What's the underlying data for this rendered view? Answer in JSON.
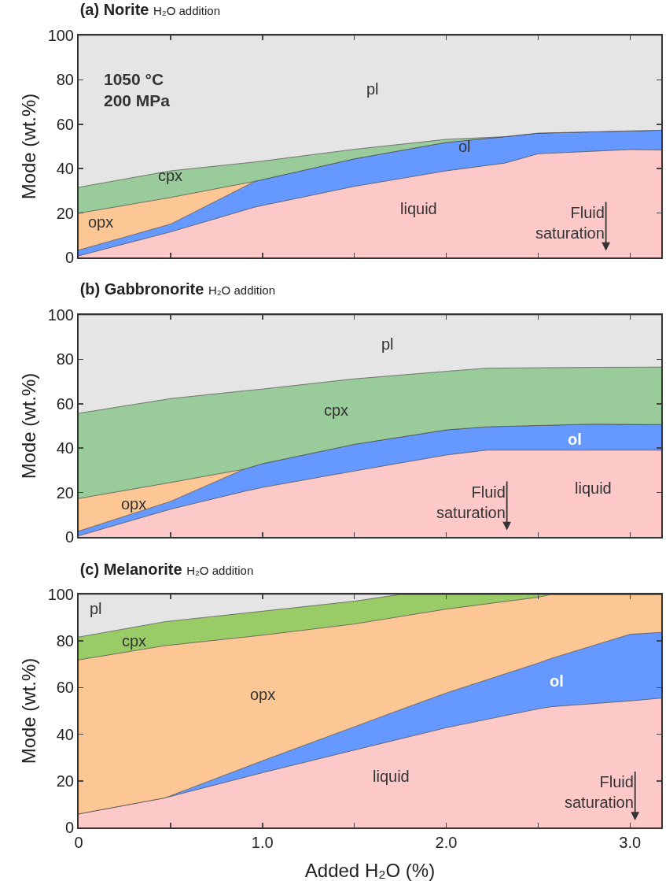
{
  "chart_data": [
    {
      "type": "area",
      "stacked": true,
      "title": "(a) Norite",
      "subtitle": "H₂O addition",
      "ylabel": "Mode (wt.%)",
      "x": [
        0,
        0.5,
        0.96,
        1.5,
        2.0,
        2.32,
        2.5,
        3.0,
        3.17
      ],
      "series": [
        {
          "name": "liquid",
          "color": "#fcc8c8",
          "values": [
            0.7,
            11.5,
            22.7,
            32,
            39,
            42.5,
            46.7,
            48.6,
            48.4
          ]
        },
        {
          "name": "ol",
          "color": "#6699ff",
          "values": [
            2.6,
            3.5,
            11.6,
            12.4,
            12.8,
            11.9,
            9.3,
            8.4,
            8.9
          ]
        },
        {
          "name": "opx",
          "color": "#fdc795",
          "values": [
            16.6,
            12,
            0,
            0,
            0,
            0,
            0,
            0,
            0
          ]
        },
        {
          "name": "cpx",
          "color": "#9acb9a",
          "values": [
            11.7,
            12,
            8.7,
            4.3,
            1.4,
            0,
            0,
            0,
            0
          ]
        },
        {
          "name": "pl",
          "color": "#e5e5e5",
          "values": [
            68.4,
            61,
            57,
            51.3,
            46.8,
            45.6,
            44,
            43,
            42.7
          ]
        }
      ],
      "xlim": [
        0,
        3.17
      ],
      "ylim": [
        0,
        100
      ],
      "xticks": [
        {
          "value": 0,
          "label": null
        },
        {
          "value": 0.5,
          "label": null
        },
        {
          "value": 1,
          "label": null
        },
        {
          "value": 1.5,
          "label": null
        },
        {
          "value": 2,
          "label": null
        },
        {
          "value": 2.5,
          "label": null
        },
        {
          "value": 3,
          "label": null
        }
      ],
      "yticks": [
        0,
        20,
        40,
        60,
        80,
        100
      ],
      "tick_labels": "y",
      "legend": false,
      "annotations": [
        "1050 °C\n200 MPa",
        "Fluid\nsaturation"
      ]
    },
    {
      "type": "area",
      "stacked": true,
      "title": "(b) Gabbronorite",
      "subtitle": "H₂O addition",
      "ylabel": "Mode (wt.%)",
      "x": [
        0,
        0.5,
        0.9,
        1.0,
        1.5,
        2.0,
        2.22,
        2.8,
        3.17
      ],
      "series": [
        {
          "name": "liquid",
          "color": "#fcc8c8",
          "values": [
            0.5,
            12.5,
            20.5,
            22.3,
            29.7,
            36.9,
            39.1,
            39.1,
            39.1
          ]
        },
        {
          "name": "ol",
          "color": "#6699ff",
          "values": [
            2.1,
            3.5,
            10,
            10.7,
            12,
            11.3,
            10.5,
            11.7,
            11.5
          ]
        },
        {
          "name": "opx",
          "color": "#fdc795",
          "values": [
            14.7,
            8.5,
            0,
            0,
            0,
            0,
            0,
            0,
            0
          ]
        },
        {
          "name": "cpx",
          "color": "#9acb9a",
          "values": [
            38.4,
            37.8,
            35.3,
            33.6,
            29.5,
            26.4,
            26.4,
            25.6,
            25.9
          ]
        },
        {
          "name": "pl",
          "color": "#e5e5e5",
          "values": [
            44.3,
            37.7,
            34.2,
            33.4,
            28.8,
            25.4,
            24,
            23.6,
            23.5
          ]
        }
      ],
      "xlim": [
        0,
        3.17
      ],
      "ylim": [
        0,
        100
      ],
      "xticks": [
        {
          "value": 0,
          "label": null
        },
        {
          "value": 0.5,
          "label": null
        },
        {
          "value": 1,
          "label": null
        },
        {
          "value": 1.5,
          "label": null
        },
        {
          "value": 2,
          "label": null
        },
        {
          "value": 2.5,
          "label": null
        },
        {
          "value": 3,
          "label": null
        }
      ],
      "yticks": [
        0,
        20,
        40,
        60,
        80,
        100
      ],
      "tick_labels": "y",
      "legend": false,
      "annotations": [
        "Fluid\nsaturation"
      ]
    },
    {
      "type": "area",
      "stacked": true,
      "title": "(c) Melanorite",
      "subtitle": "H₂O addition",
      "ylabel": "Mode (wt.%)",
      "xlabel": "Added H₂O (%)",
      "x": [
        0,
        0.47,
        1.0,
        1.5,
        1.75,
        2.0,
        2.5,
        2.57,
        3.0,
        3.17
      ],
      "series": [
        {
          "name": "liquid",
          "color": "#fcc8c8",
          "values": [
            5.8,
            12.7,
            23.5,
            33.2,
            38,
            42.8,
            50.9,
            51.8,
            54.3,
            55.5
          ]
        },
        {
          "name": "ol",
          "color": "#6699ff",
          "values": [
            0,
            0,
            5.1,
            10,
            12.5,
            14.9,
            19.6,
            20.7,
            28.6,
            28.2
          ]
        },
        {
          "name": "opx",
          "color": "#fdc795",
          "values": [
            66.1,
            65.3,
            53.9,
            44.1,
            40,
            36,
            28.3,
            27.5,
            17.1,
            16.3
          ]
        },
        {
          "name": "cpx",
          "color": "#99cc66",
          "values": [
            9.8,
            10.3,
            10.3,
            9.8,
            9.5,
            6.3,
            1.2,
            0,
            0,
            0
          ]
        },
        {
          "name": "pl",
          "color": "#e5e5e5",
          "values": [
            18.3,
            11.7,
            7.2,
            2.9,
            0,
            0,
            0,
            0,
            0,
            0
          ]
        }
      ],
      "xlim": [
        0,
        3.17
      ],
      "ylim": [
        0,
        100
      ],
      "xticks": [
        {
          "value": 0,
          "label": "0"
        },
        {
          "value": 0.5,
          "label": null
        },
        {
          "value": 1,
          "label": "1.0"
        },
        {
          "value": 1.5,
          "label": null
        },
        {
          "value": 2,
          "label": "2.0"
        },
        {
          "value": 2.5,
          "label": null
        },
        {
          "value": 3,
          "label": "3.0"
        }
      ],
      "yticks": [
        0,
        20,
        40,
        60,
        80,
        100
      ],
      "legend": false,
      "annotations": [
        "Fluid\nsaturation"
      ]
    }
  ]
}
